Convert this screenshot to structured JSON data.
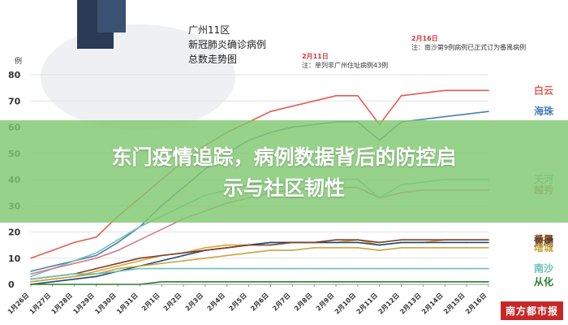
{
  "headline": {
    "line1": "东门疫情追踪，病例数据背后的防控启",
    "line2": "示与社区韧性"
  },
  "chart_data": {
    "type": "line",
    "title": [
      "广州11区",
      "新冠肺炎确诊病例",
      "总数走势图"
    ],
    "y_unit": "例",
    "ylim": [
      0,
      80
    ],
    "yticks": [
      0,
      10,
      20,
      30,
      40,
      50,
      60,
      70,
      80
    ],
    "categories": [
      "1月26日",
      "1月27日",
      "1月28日",
      "1月29日",
      "1月30日",
      "1月31日",
      "2月1日",
      "2月2日",
      "2月3日",
      "2月4日",
      "2月5日",
      "2月6日",
      "2月7日",
      "2月8日",
      "2月9日",
      "2月10日",
      "2月11日",
      "2月12日",
      "2月13日",
      "2月14日",
      "2月15日",
      "2月16日"
    ],
    "series": [
      {
        "name": "白云",
        "color": "#e85a4f",
        "values": [
          10,
          13,
          16,
          18,
          26,
          33,
          40,
          47,
          53,
          58,
          62,
          66,
          68,
          70,
          72,
          72,
          61,
          72,
          73,
          74,
          74,
          74
        ]
      },
      {
        "name": "海珠",
        "color": "#4a7fb5",
        "values": [
          5,
          7,
          9,
          11,
          16,
          22,
          30,
          37,
          44,
          50,
          55,
          58,
          60,
          61,
          62,
          62,
          55,
          62,
          63,
          64,
          65,
          66
        ]
      },
      {
        "name": "天河",
        "color": "#6cc0b8",
        "values": [
          3,
          6,
          9,
          12,
          17,
          22,
          26,
          30,
          34,
          36,
          38,
          39,
          39,
          40,
          40,
          40,
          33,
          38,
          39,
          40,
          40,
          40
        ]
      },
      {
        "name": "越秀",
        "color": "#d97b86",
        "values": [
          4,
          6,
          8,
          10,
          13,
          17,
          21,
          25,
          28,
          31,
          33,
          35,
          36,
          37,
          37,
          37,
          33,
          35,
          36,
          36,
          36,
          36
        ]
      },
      {
        "name": "花都",
        "color": "#e2a12b",
        "values": [
          1,
          2,
          3,
          5,
          7,
          9,
          11,
          12,
          14,
          15,
          15,
          16,
          16,
          16,
          16,
          17,
          15,
          16,
          16,
          17,
          17,
          17
        ]
      },
      {
        "name": "黄埔",
        "color": "#1b4c72",
        "values": [
          0,
          1,
          2,
          3,
          5,
          7,
          9,
          11,
          13,
          14,
          15,
          16,
          16,
          16,
          16,
          16,
          15,
          16,
          16,
          16,
          16,
          16
        ]
      },
      {
        "name": "番禺",
        "color": "#7b3e2a",
        "values": [
          2,
          3,
          4,
          6,
          8,
          10,
          11,
          12,
          13,
          14,
          15,
          15,
          16,
          16,
          17,
          17,
          16,
          17,
          17,
          17,
          17,
          17
        ]
      },
      {
        "name": "增城",
        "color": "#c8a33e",
        "values": [
          1,
          2,
          3,
          4,
          6,
          7,
          8,
          9,
          10,
          11,
          12,
          13,
          13,
          14,
          14,
          14,
          13,
          14,
          14,
          14,
          14,
          14
        ]
      },
      {
        "name": "南沙",
        "color": "#6cc0b8",
        "values": [
          2,
          3,
          4,
          4,
          5,
          6,
          6,
          6,
          6,
          6,
          6,
          6,
          6,
          6,
          6,
          6,
          6,
          6,
          6,
          6,
          6,
          6
        ]
      },
      {
        "name": "从化",
        "color": "#2e7d32",
        "values": [
          0,
          0,
          0,
          0,
          0,
          0,
          1,
          1,
          1,
          1,
          1,
          1,
          1,
          1,
          1,
          1,
          1,
          1,
          1,
          1,
          1,
          1
        ]
      }
    ],
    "annotations": [
      {
        "date": "2月11日",
        "text": "注：单列非广州住址病例43例"
      },
      {
        "date": "2月16日",
        "text": "注：南沙第9例病例已正式订为番禺病例"
      }
    ]
  },
  "watermark": "南方都市报"
}
